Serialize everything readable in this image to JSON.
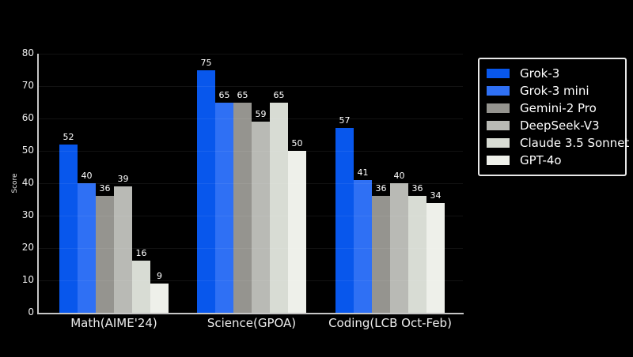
{
  "chart_data": {
    "type": "bar",
    "title": "",
    "xlabel": "",
    "ylabel": "Score",
    "ylim": [
      0,
      80
    ],
    "yticks": [
      0,
      10,
      20,
      30,
      40,
      50,
      60,
      70,
      80
    ],
    "categories": [
      "Math(AIME'24)",
      "Science(GPOA)",
      "Coding(LCB Oct-Feb)"
    ],
    "series": [
      {
        "name": "Grok-3",
        "color": "#0857ec",
        "values": [
          52,
          75,
          57
        ]
      },
      {
        "name": "Grok-3 mini",
        "color": "#2f70f4",
        "values": [
          40,
          65,
          41
        ]
      },
      {
        "name": "Gemini-2 Pro",
        "color": "#95948f",
        "values": [
          36,
          65,
          36
        ]
      },
      {
        "name": "DeepSeek-V3",
        "color": "#b9bab5",
        "values": [
          39,
          59,
          40
        ]
      },
      {
        "name": "Claude 3.5 Sonnet",
        "color": "#d8dcd4",
        "values": [
          16,
          65,
          36
        ]
      },
      {
        "name": "GPT-4o",
        "color": "#eef0ea",
        "values": [
          9,
          50,
          34
        ]
      }
    ],
    "legend_position": "upper right",
    "grid": "faint horizontal gridlines over bars",
    "background_color": "#000000",
    "axis_color": "#c6c6c6",
    "text_color": "#ededed",
    "value_labels_shown": true
  }
}
